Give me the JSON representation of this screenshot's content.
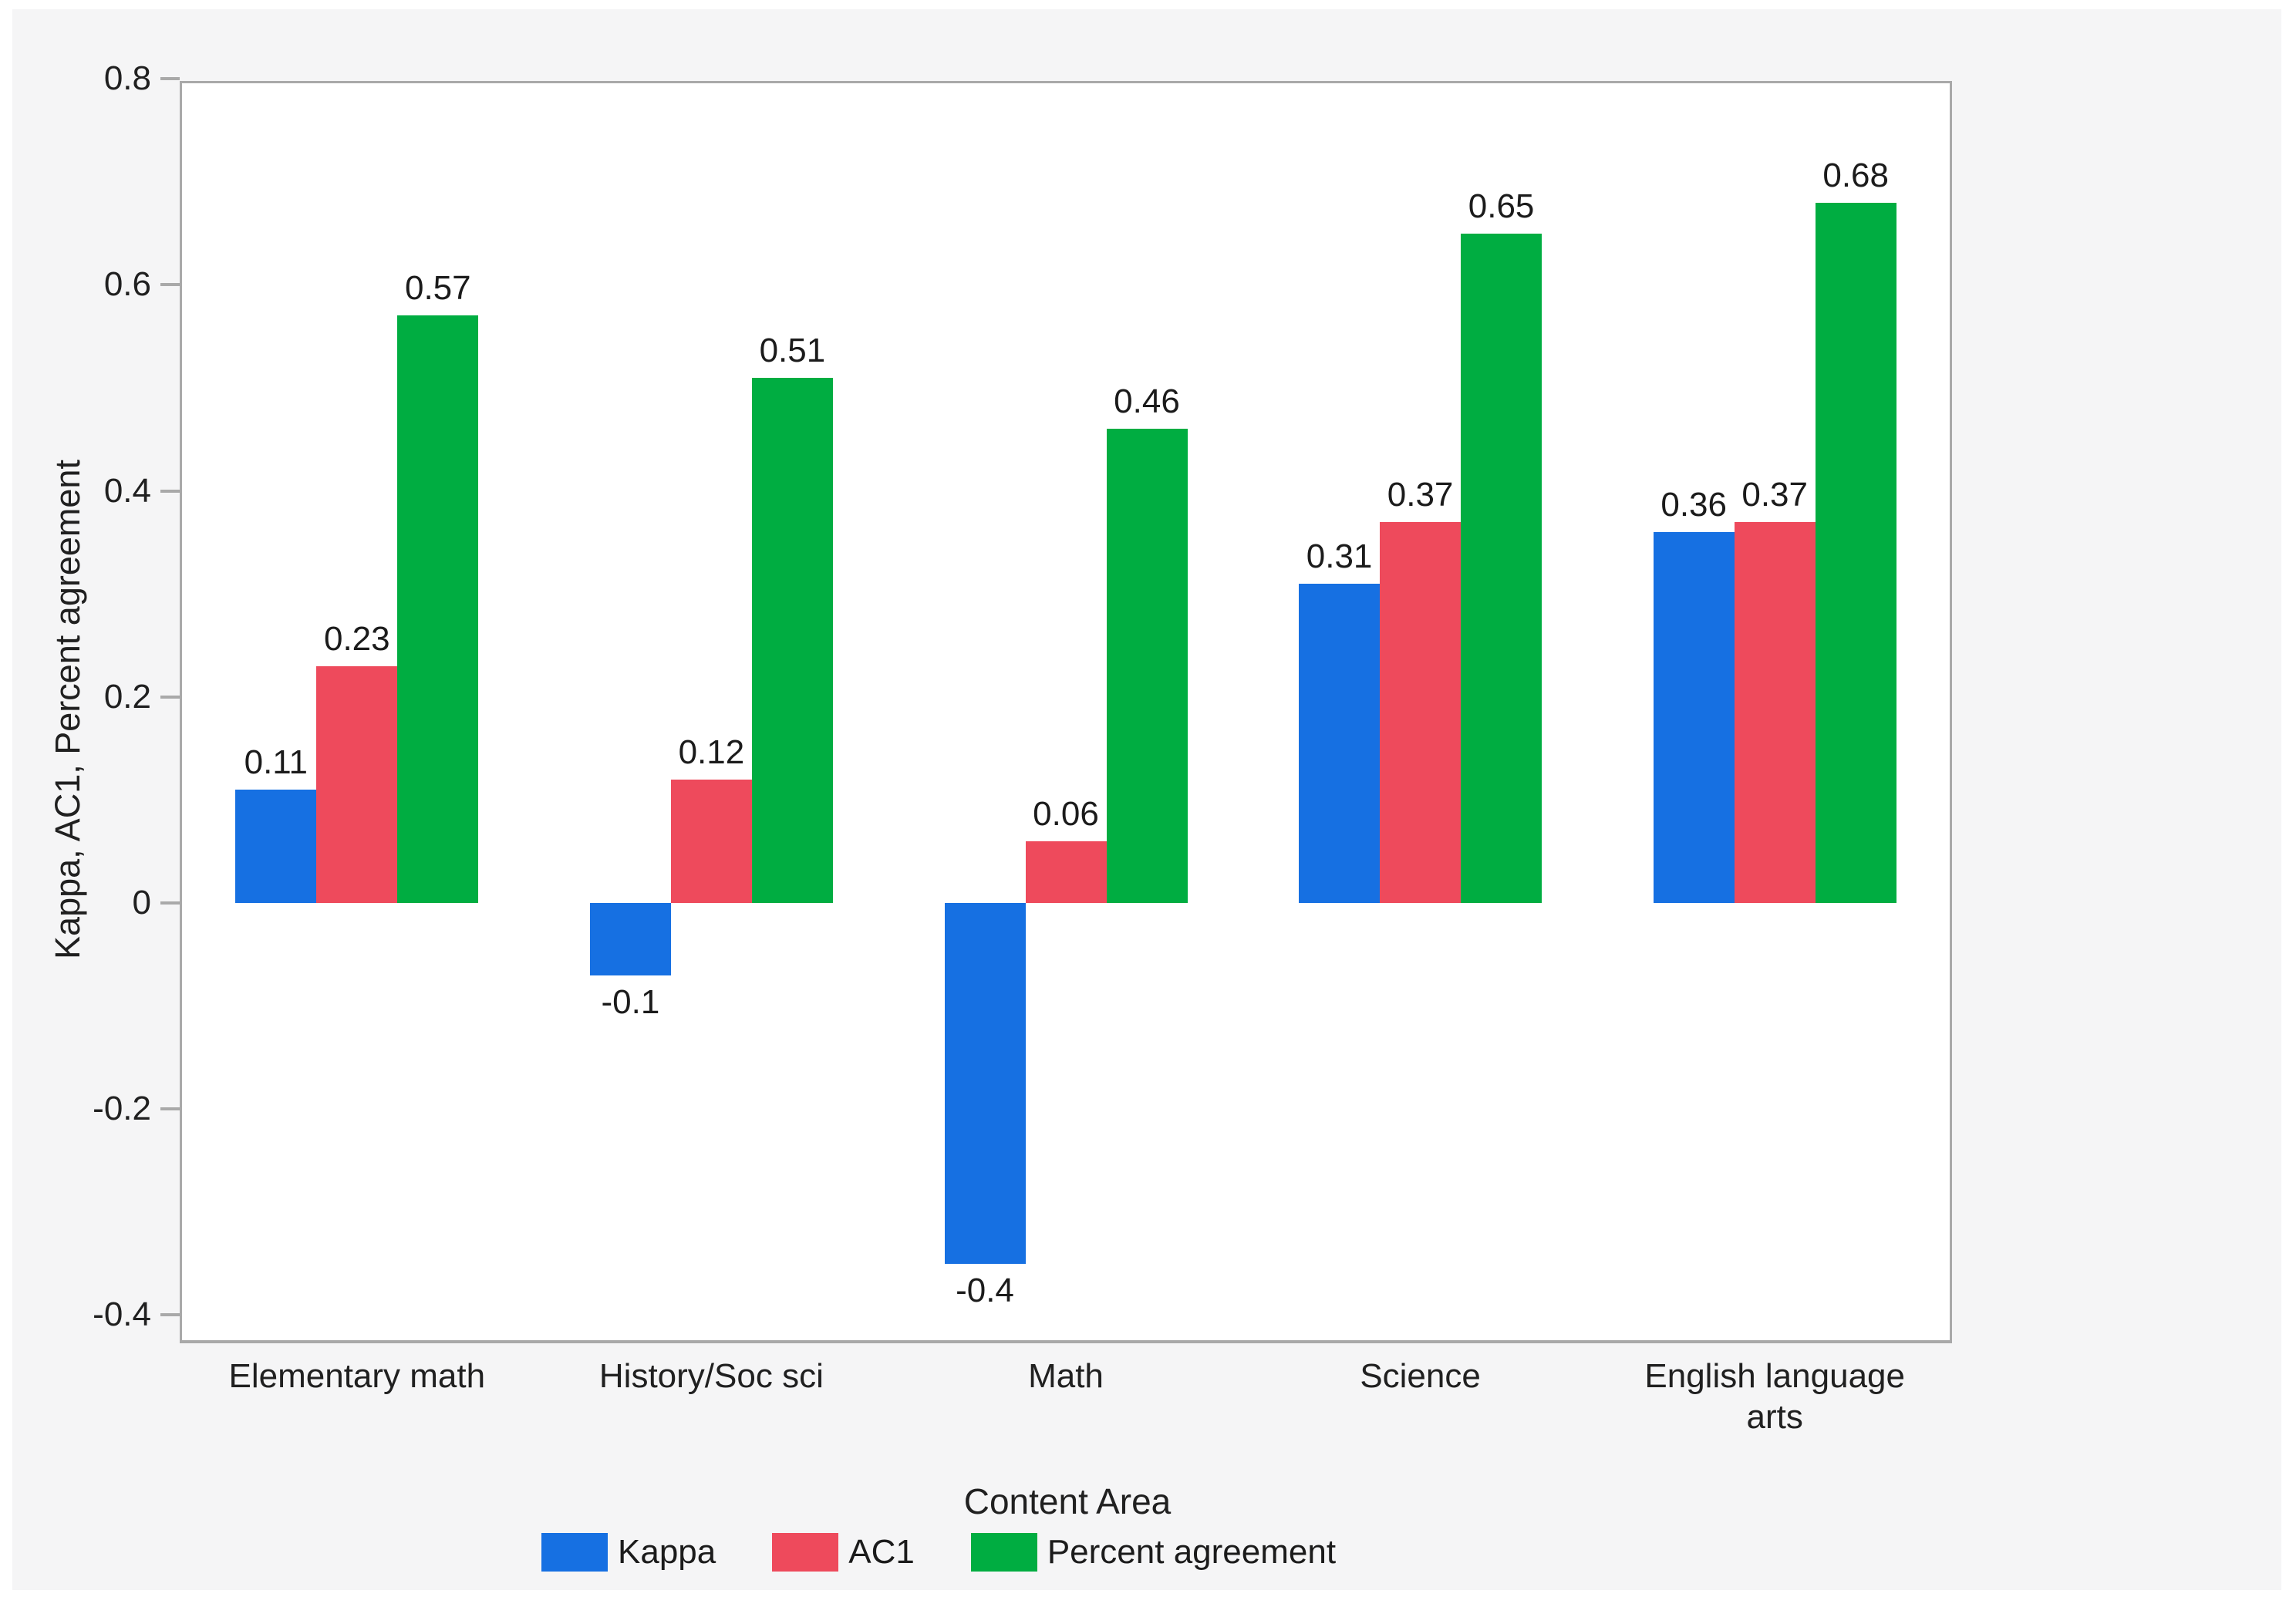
{
  "chart_data": {
    "type": "bar",
    "title": "",
    "xlabel": "Content Area",
    "ylabel": "Kappa, AC1, Percent agreement",
    "ylim": [
      -0.4,
      0.8
    ],
    "yticks": [
      0.8,
      0.6,
      0.4,
      0.2,
      0,
      -0.2,
      -0.4
    ],
    "ytick_labels": [
      "0.8",
      "0.6",
      "0.4",
      "0.2",
      "0",
      "-0.2",
      "-0.4"
    ],
    "grid": false,
    "legend_position": "bottom",
    "categories": [
      "Elementary math",
      "History/Soc sci",
      "Math",
      "Science",
      "English language arts"
    ],
    "series": [
      {
        "name": "Kappa",
        "color": "#1670e2",
        "values": [
          0.11,
          -0.07,
          -0.35,
          0.31,
          0.36
        ],
        "data_labels": [
          "0.11",
          "-0.1",
          "-0.4",
          "0.31",
          "0.36"
        ]
      },
      {
        "name": "AC1",
        "color": "#ee4a5c",
        "values": [
          0.23,
          0.12,
          0.06,
          0.37,
          0.37
        ],
        "data_labels": [
          "0.23",
          "0.12",
          "0.06",
          "0.37",
          "0.37"
        ]
      },
      {
        "name": "Percent agreement",
        "color": "#00ad41",
        "values": [
          0.57,
          0.51,
          0.46,
          0.65,
          0.68
        ],
        "data_labels": [
          "0.57",
          "0.51",
          "0.46",
          "0.65",
          "0.68"
        ]
      }
    ],
    "colors": {
      "plot_background": "#ffffff",
      "panel_background": "#f5f5f6",
      "axis_line": "#a9a9a9",
      "text": "#1f1f1f"
    }
  }
}
